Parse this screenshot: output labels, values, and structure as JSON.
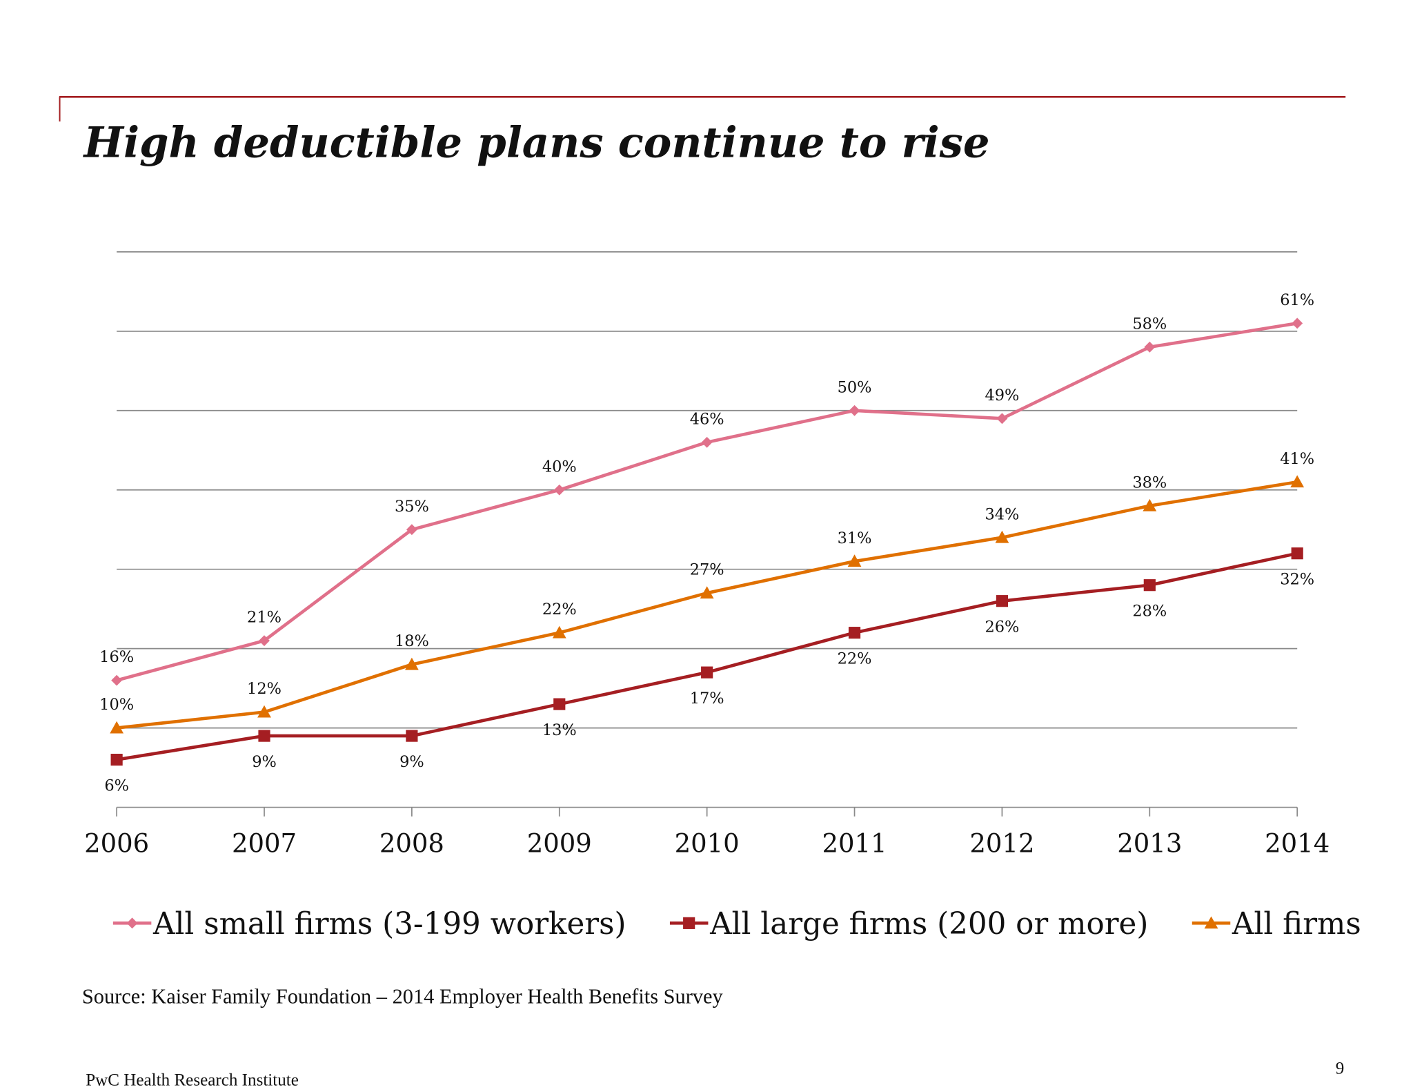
{
  "title": "High deductible plans continue to rise",
  "source": "Source: Kaiser Family Foundation – 2014 Employer Health Benefits Survey",
  "footer": "PwC Health Research Institute",
  "page_number": "9",
  "colors": {
    "accent_rule": "#A51E22",
    "small": "#E0708A",
    "large": "#A51E22",
    "all": "#E07000"
  },
  "chart_data": {
    "type": "line",
    "title": "High deductible plans continue to rise",
    "categories": [
      "2006",
      "2007",
      "2008",
      "2009",
      "2010",
      "2011",
      "2012",
      "2013",
      "2014"
    ],
    "ylim": [
      0,
      70
    ],
    "grid": true,
    "y_axis_labels_shown": false,
    "legend_placement": "bottom",
    "series": [
      {
        "name": "All small firms (3-199 workers)",
        "marker": "diamond",
        "color": "#E0708A",
        "label_pos": "above",
        "values": [
          16,
          21,
          35,
          40,
          46,
          50,
          49,
          58,
          61
        ]
      },
      {
        "name": "All large firms (200 or more)",
        "marker": "square",
        "color": "#A51E22",
        "label_pos": "below",
        "values": [
          6,
          9,
          9,
          13,
          17,
          22,
          26,
          28,
          32
        ]
      },
      {
        "name": "All firms",
        "marker": "triangle",
        "color": "#E07000",
        "label_pos": "above",
        "values": [
          10,
          12,
          18,
          22,
          27,
          31,
          34,
          38,
          41
        ]
      }
    ]
  }
}
